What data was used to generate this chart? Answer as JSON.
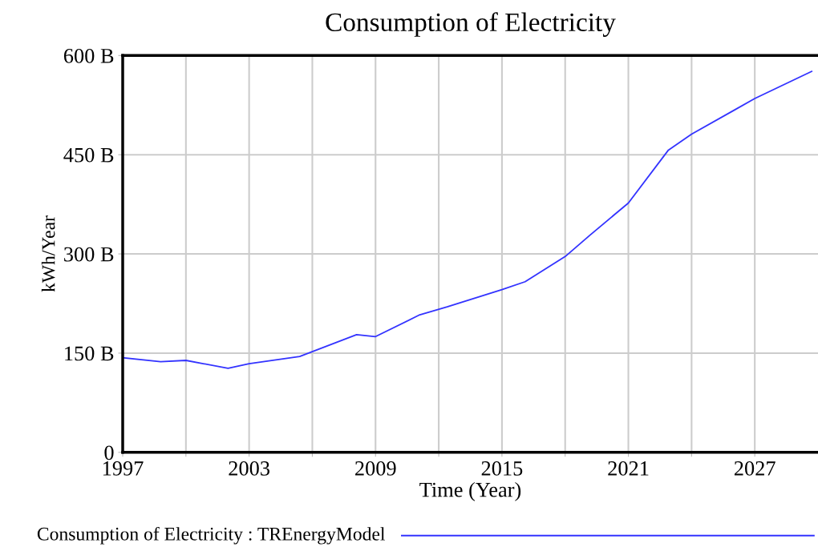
{
  "chart_data": {
    "type": "line",
    "title": "Consumption of Electricity",
    "xlabel": "Time (Year)",
    "ylabel": "kWh/Year",
    "x": [
      1997,
      1998.8,
      2000,
      2002,
      2003,
      2005.4,
      2008.1,
      2009,
      2011.1,
      2012.4,
      2015,
      2016.1,
      2018,
      2019.2,
      2021,
      2022.9,
      2024,
      2026,
      2027,
      2029.7
    ],
    "series": [
      {
        "name": "Consumption of Electricity : TREnergyModel",
        "color": "#3333ff",
        "values": [
          143,
          137,
          139,
          127,
          134,
          145,
          178,
          175,
          208,
          220,
          246,
          258,
          296,
          329,
          377,
          457,
          481,
          517,
          535,
          576
        ]
      }
    ],
    "xlim": [
      1997,
      2030
    ],
    "xticks": [
      {
        "value": 1997,
        "label": "1997"
      },
      {
        "value": 2000,
        "label": null
      },
      {
        "value": 2003,
        "label": "2003"
      },
      {
        "value": 2006,
        "label": null
      },
      {
        "value": 2009,
        "label": "2009"
      },
      {
        "value": 2012,
        "label": null
      },
      {
        "value": 2015,
        "label": "2015"
      },
      {
        "value": 2018,
        "label": null
      },
      {
        "value": 2021,
        "label": "2021"
      },
      {
        "value": 2024,
        "label": null
      },
      {
        "value": 2027,
        "label": "2027"
      }
    ],
    "ylim": [
      0,
      600
    ],
    "yticks": [
      {
        "value": 0,
        "label": "0"
      },
      {
        "value": 150,
        "label": "150 B"
      },
      {
        "value": 300,
        "label": "300 B"
      },
      {
        "value": 450,
        "label": "450 B"
      },
      {
        "value": 600,
        "label": "600 B"
      }
    ],
    "grid": true,
    "legend": "bottom",
    "marker": "none",
    "line_style": "solid"
  }
}
